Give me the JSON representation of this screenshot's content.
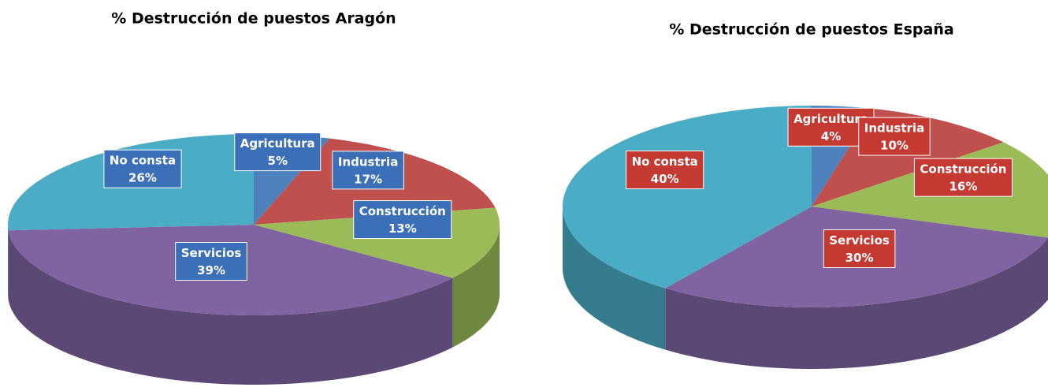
{
  "chart_data": [
    {
      "type": "pie3d",
      "title": "% Destrucción de puestos Aragón",
      "categories": [
        "Agricultura",
        "Industria",
        "Construcción",
        "Servicios",
        "No consta"
      ],
      "values": [
        5,
        17,
        13,
        39,
        26
      ],
      "value_labels": [
        "5%",
        "17%",
        "13%",
        "39%",
        "26%"
      ],
      "colors": [
        "#4f81bd",
        "#c0504d",
        "#9bbb59",
        "#8064a2",
        "#4bacc6"
      ],
      "label_color": "#3b70b8"
    },
    {
      "type": "pie3d",
      "title": "% Destrucción de puestos España",
      "categories": [
        "Agricultura",
        "Industria",
        "Construcción",
        "Servicios",
        "No consta"
      ],
      "values": [
        4,
        10,
        16,
        30,
        40
      ],
      "value_labels": [
        "4%",
        "10%",
        "16%",
        "30%",
        "40%"
      ],
      "colors": [
        "#4f81bd",
        "#c0504d",
        "#9bbb59",
        "#8064a2",
        "#4bacc6"
      ],
      "label_color": "#c43a32"
    }
  ]
}
